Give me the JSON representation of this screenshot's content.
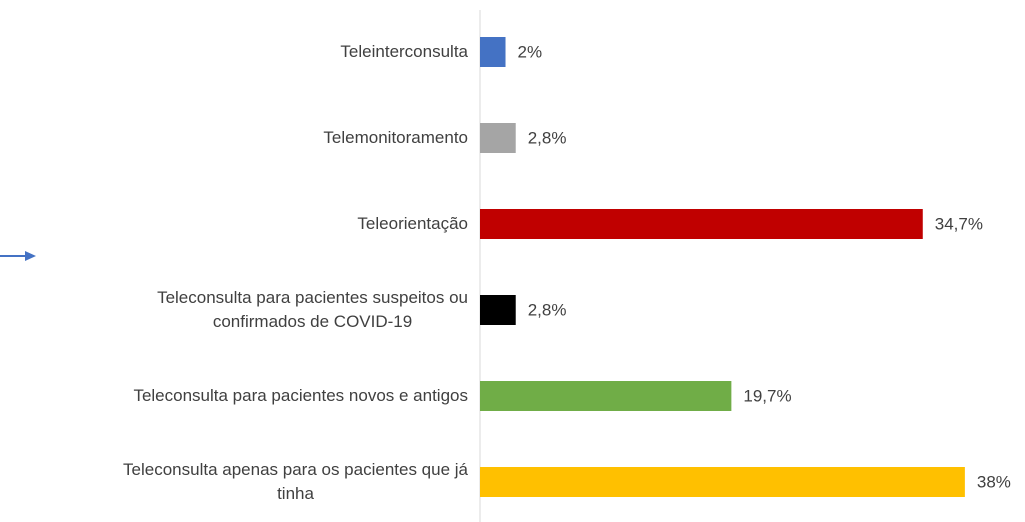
{
  "chart_data": {
    "type": "bar",
    "orientation": "horizontal",
    "categories": [
      "Teleinterconsulta",
      "Telemonitoramento",
      "Teleorientação",
      "Teleconsulta para pacientes suspeitos ou\nconfirmados de COVID-19",
      "Teleconsulta para pacientes novos e antigos",
      "Teleconsulta apenas para os pacientes que já\ntinha"
    ],
    "values": [
      2,
      2.8,
      34.7,
      2.8,
      19.7,
      38
    ],
    "value_labels": [
      "2%",
      "2,8%",
      "34,7%",
      "2,8%",
      "19,7%",
      "38%"
    ],
    "colors": [
      "#4472c4",
      "#a5a5a5",
      "#c00000",
      "#000000",
      "#70ad47",
      "#ffc000"
    ]
  }
}
